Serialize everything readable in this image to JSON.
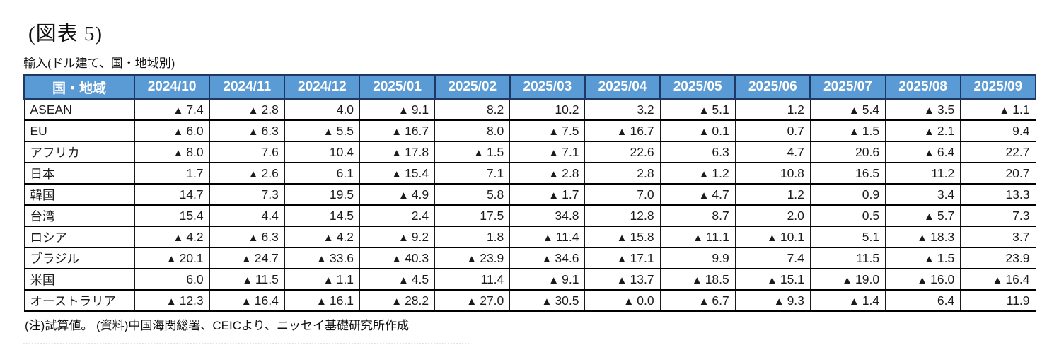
{
  "figure_label": "(図表 5)",
  "subtitle": "輸入(ドル建て、国・地域別)",
  "note": "(注)試算値。 (資料)中国海関総署、CEICより、ニッセイ基礎研究所作成",
  "negative_marker": "▲",
  "colors": {
    "header_bg": "#5B9BD5",
    "header_text": "#FFFFFF",
    "header_border": "#1F3864",
    "cell_border": "#000000"
  },
  "chart_data": {
    "type": "table",
    "title": "(図表 5)",
    "subtitle": "輸入(ドル建て、国・地域別)",
    "row_header": "国・地域",
    "columns": [
      "2024/10",
      "2024/11",
      "2024/12",
      "2025/01",
      "2025/02",
      "2025/03",
      "2025/04",
      "2025/05",
      "2025/06",
      "2025/07",
      "2025/08",
      "2025/09"
    ],
    "rows": [
      {
        "label": "ASEAN",
        "values": [
          -7.4,
          -2.8,
          4.0,
          -9.1,
          8.2,
          10.2,
          3.2,
          -5.1,
          1.2,
          -5.4,
          -3.5,
          -1.1
        ]
      },
      {
        "label": "EU",
        "values": [
          -6.0,
          -6.3,
          -5.5,
          -16.7,
          8.0,
          -7.5,
          -16.7,
          -0.1,
          0.7,
          -1.5,
          -2.1,
          9.4
        ]
      },
      {
        "label": "アフリカ",
        "values": [
          -8.0,
          7.6,
          10.4,
          -17.8,
          -1.5,
          -7.1,
          22.6,
          6.3,
          4.7,
          20.6,
          -6.4,
          22.7
        ]
      },
      {
        "label": "日本",
        "values": [
          1.7,
          -2.6,
          6.1,
          -15.4,
          7.1,
          -2.8,
          2.8,
          -1.2,
          10.8,
          16.5,
          11.2,
          20.7
        ]
      },
      {
        "label": "韓国",
        "values": [
          14.7,
          7.3,
          19.5,
          -4.9,
          5.8,
          -1.7,
          7.0,
          -4.7,
          1.2,
          0.9,
          3.4,
          13.3
        ]
      },
      {
        "label": "台湾",
        "values": [
          15.4,
          4.4,
          14.5,
          2.4,
          17.5,
          34.8,
          12.8,
          8.7,
          2.0,
          0.5,
          -5.7,
          7.3
        ]
      },
      {
        "label": "ロシア",
        "values": [
          -4.2,
          -6.3,
          -4.2,
          -9.2,
          1.8,
          -11.4,
          -15.8,
          -11.1,
          -10.1,
          5.1,
          -18.3,
          3.7
        ]
      },
      {
        "label": "ブラジル",
        "values": [
          -20.1,
          -24.7,
          -33.6,
          -40.3,
          -23.9,
          -34.6,
          -17.1,
          9.9,
          7.4,
          11.5,
          -1.5,
          23.9
        ]
      },
      {
        "label": "米国",
        "values": [
          6.0,
          -11.5,
          -1.1,
          -4.5,
          11.4,
          -9.1,
          -13.7,
          -18.5,
          -15.1,
          -19.0,
          -16.0,
          -16.4
        ]
      },
      {
        "label": "オーストラリア",
        "values": [
          -12.3,
          -16.4,
          -16.1,
          -28.2,
          -27.0,
          -30.5,
          -0.0,
          -6.7,
          -9.3,
          -1.4,
          6.4,
          11.9
        ]
      }
    ],
    "legend_note": "▲ prefix denotes negative values, one decimal place"
  }
}
